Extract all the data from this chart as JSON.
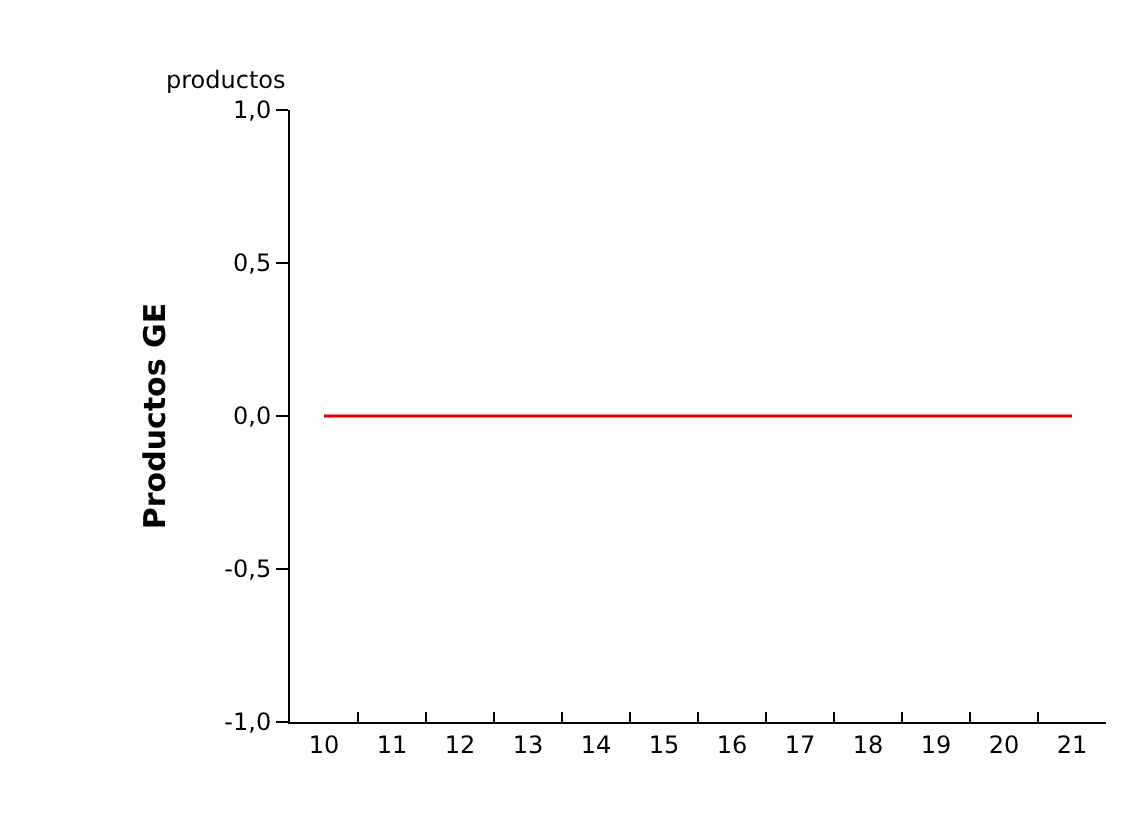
{
  "chart_data": {
    "type": "line",
    "ylabel": "Productos GE",
    "annotations": [
      "productos"
    ],
    "categories": [
      "10",
      "11",
      "12",
      "13",
      "14",
      "15",
      "16",
      "17",
      "18",
      "19",
      "20",
      "21"
    ],
    "series": [
      {
        "color": "#e00000",
        "values": [
          0,
          0,
          0,
          0,
          0,
          0,
          0,
          0,
          0,
          0,
          0,
          0
        ]
      }
    ],
    "ylim": [
      -1,
      1
    ],
    "yticks": [
      {
        "value": -1,
        "label": "-1,0"
      },
      {
        "value": -0.5,
        "label": "-0,5"
      },
      {
        "value": 0,
        "label": "0,0"
      },
      {
        "value": 0.5,
        "label": "0,5"
      },
      {
        "value": 1,
        "label": "1,0"
      }
    ],
    "marker": "none",
    "line_style": "solid"
  }
}
